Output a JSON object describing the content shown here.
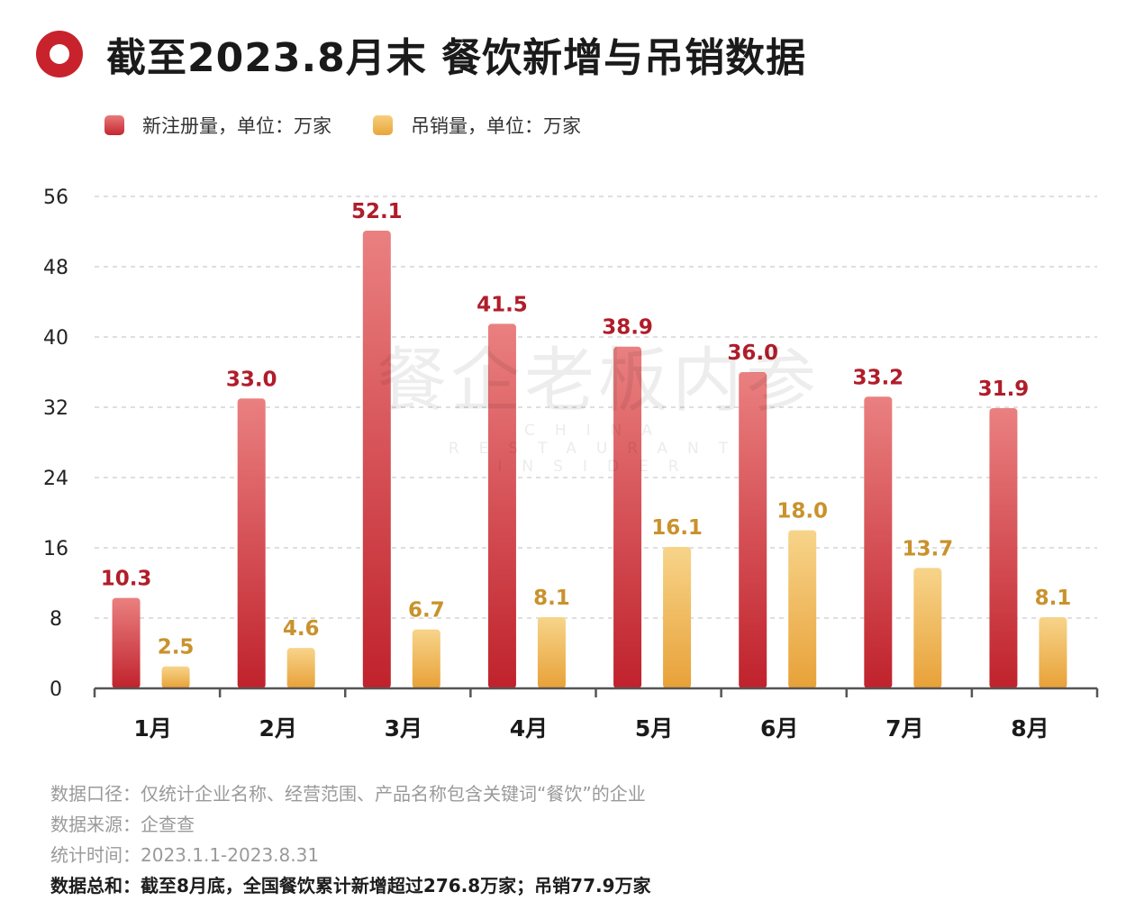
{
  "title": "截至2023.8月末 餐饮新增与吊销数据",
  "legend": {
    "new_label": "新注册量，单位：万家",
    "revoked_label": "吊销量，单位：万家"
  },
  "colors": {
    "new": "#c8232c",
    "new_label": "#b01d2a",
    "revoked": "#ebac45",
    "revoked_label": "#c9922c",
    "axis": "#555555",
    "grid": "#cccccc"
  },
  "watermark": {
    "main": "餐企老板内参",
    "sub": "CHINA RESTAURANT INSIDER"
  },
  "notes": {
    "scope": "数据口径：仅统计企业名称、经营范围、产品名称包含关键词“餐饮”的企业",
    "source": "数据来源：企查查",
    "period": "统计时间：2023.1.1-2023.8.31",
    "summary": "数据总和：截至8月底，全国餐饮累计新增超过276.8万家；吊销77.9万家"
  },
  "chart_data": {
    "type": "bar",
    "title": "截至2023.8月末 餐饮新增与吊销数据",
    "categories": [
      "1月",
      "2月",
      "3月",
      "4月",
      "5月",
      "6月",
      "7月",
      "8月"
    ],
    "series": [
      {
        "name": "新注册量，单位：万家",
        "values": [
          10.3,
          33.0,
          52.1,
          41.5,
          38.9,
          36.0,
          33.2,
          31.9
        ],
        "labels": [
          "10.3",
          "33.0",
          "52.1",
          "41.5",
          "38.9",
          "36.0",
          "33.2",
          "31.9"
        ]
      },
      {
        "name": "吊销量，单位：万家",
        "values": [
          2.5,
          4.6,
          6.7,
          8.1,
          16.1,
          18.0,
          13.7,
          8.1
        ],
        "labels": [
          "2.5",
          "4.6",
          "6.7",
          "8.1",
          "16.1",
          "18.0",
          "13.7",
          "8.1"
        ]
      }
    ],
    "yticks": [
      0,
      8,
      16,
      24,
      32,
      40,
      48,
      56
    ],
    "ylim": [
      0,
      56
    ],
    "xlabel": "",
    "ylabel": "",
    "grid": true,
    "legend_position": "top-left"
  }
}
